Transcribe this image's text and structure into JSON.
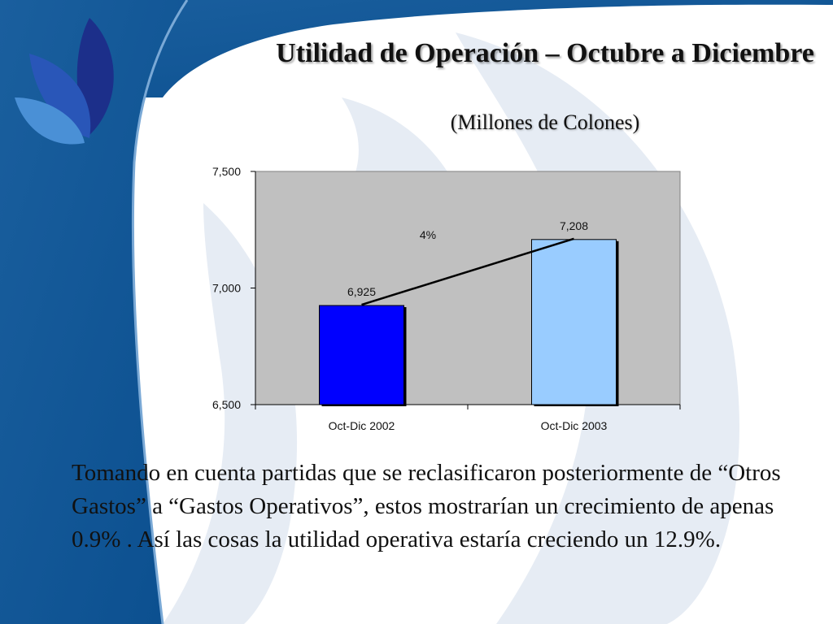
{
  "slide": {
    "title": "Utilidad de Operación – Octubre a Diciembre",
    "subtitle": "(Millones de Colones)",
    "body": "Tomando en cuenta partidas que se reclasificaron posteriormente de “Otros Gastos” a “Gastos Operativos”, estos mostrarían un crecimiento de apenas 0.9% . Así las cosas la utilidad operativa estaría creciendo un 12.9%."
  },
  "chart_data": {
    "type": "bar",
    "categories": [
      "Oct-Dic 2002",
      "Oct-Dic 2003"
    ],
    "values": [
      6925,
      7208
    ],
    "data_labels": [
      "6,925",
      "7,208"
    ],
    "bar_colors": [
      "#0000ff",
      "#99ccff"
    ],
    "plot_background": "#c0c0c0",
    "ylim": [
      6500,
      7500
    ],
    "yticks": [
      6500,
      7000,
      7500
    ],
    "ytick_labels": [
      "6,500",
      "7,000",
      "7,500"
    ],
    "growth_annotation": "4%",
    "title": "",
    "xlabel": "",
    "ylabel": "",
    "grid": false,
    "legend": "none"
  }
}
